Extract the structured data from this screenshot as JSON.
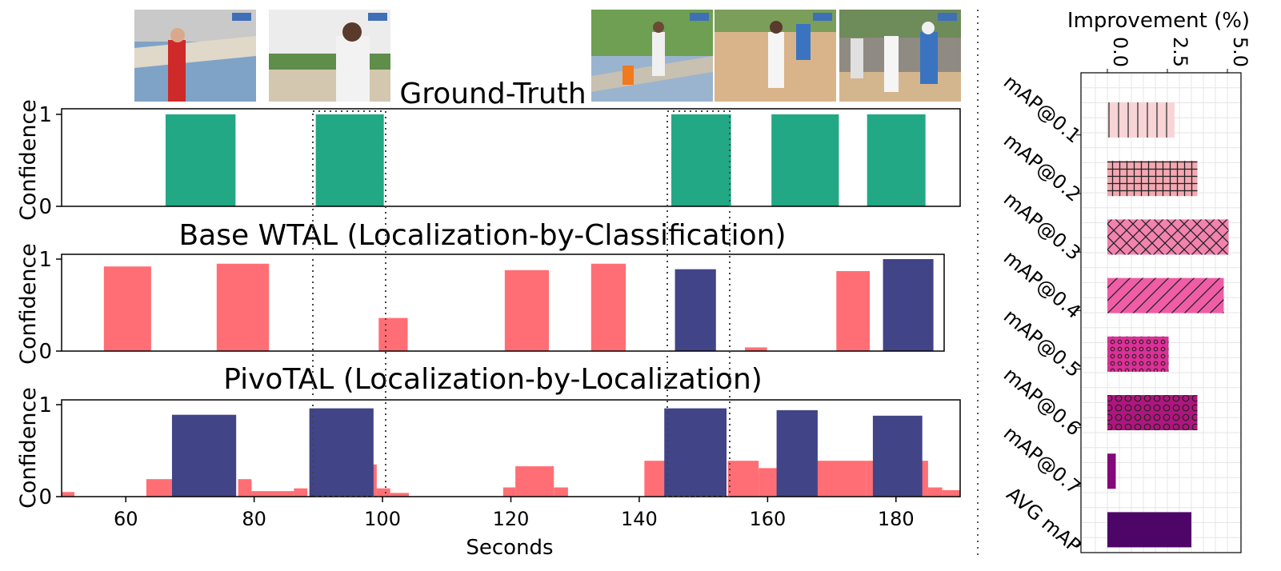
{
  "chart_data": [
    {
      "type": "bar",
      "title": "Ground-Truth",
      "ylabel": "Confidence",
      "xlim": [
        50,
        190
      ],
      "ylim": [
        0,
        1
      ],
      "yticks": [
        0,
        1
      ],
      "series": [
        {
          "color": "#22a884",
          "bars": [
            [
              66.2,
              77.1,
              1.0
            ],
            [
              89.6,
              100.2,
              1.0
            ],
            [
              145.0,
              154.3,
              1.0
            ],
            [
              160.6,
              171.1,
              1.0
            ],
            [
              175.5,
              184.6,
              1.0
            ]
          ]
        }
      ]
    },
    {
      "type": "bar",
      "title": "Base WTAL (Localization-by-Classification)",
      "ylabel": "Confidence",
      "xlim": [
        50,
        190
      ],
      "ylim": [
        0,
        1
      ],
      "yticks": [
        0,
        1
      ],
      "series": [
        {
          "color": "#ff6e74",
          "bars": [
            [
              56.7,
              64.2,
              0.92
            ],
            [
              74.6,
              82.9,
              0.95
            ],
            [
              100.3,
              104.9,
              0.36
            ],
            [
              120.3,
              127.3,
              0.88
            ],
            [
              134.0,
              139.5,
              0.95
            ],
            [
              158.4,
              161.9,
              0.04
            ],
            [
              172.9,
              178.2,
              0.87
            ]
          ]
        },
        {
          "color": "#414487",
          "bars": [
            [
              147.3,
              153.8,
              0.89
            ],
            [
              180.3,
              188.3,
              1.0
            ]
          ]
        }
      ]
    },
    {
      "type": "bar",
      "title": "PivoTAL (Localization-by-Localization)",
      "ylabel": "Confidence",
      "xlabel": "Seconds",
      "xlim": [
        50,
        190
      ],
      "ylim": [
        0,
        1
      ],
      "yticks": [
        0,
        1
      ],
      "xticks": [
        60,
        80,
        100,
        120,
        140,
        160,
        180
      ],
      "series": [
        {
          "color": "#ff6e74",
          "bars": [
            [
              50,
              52,
              0.05
            ],
            [
              63.2,
              67.5,
              0.19
            ],
            [
              77.5,
              79.6,
              0.19
            ],
            [
              79.6,
              86.2,
              0.06
            ],
            [
              86.2,
              88.3,
              0.09
            ],
            [
              98.2,
              99.1,
              0.35
            ],
            [
              99.1,
              101.2,
              0.09
            ],
            [
              101.2,
              104.1,
              0.04
            ],
            [
              118.8,
              120.7,
              0.1
            ],
            [
              120.7,
              126.7,
              0.33
            ],
            [
              126.7,
              128.9,
              0.1
            ],
            [
              140.8,
              144.2,
              0.39
            ],
            [
              153.8,
              158.6,
              0.39
            ],
            [
              158.6,
              161.4,
              0.31
            ],
            [
              161.4,
              167.8,
              0.39
            ],
            [
              167.8,
              175.3,
              0.39
            ],
            [
              175.3,
              182.5,
              0.39
            ],
            [
              182.5,
              185.0,
              0.39
            ],
            [
              185.0,
              187.2,
              0.1
            ],
            [
              187.2,
              190,
              0.07
            ]
          ]
        },
        {
          "color": "#414487",
          "bars": [
            [
              67.2,
              77.2,
              0.89
            ],
            [
              88.6,
              98.6,
              0.96
            ],
            [
              143.9,
              153.6,
              0.96
            ],
            [
              161.4,
              167.8,
              0.94
            ],
            [
              176.4,
              184.1,
              0.88
            ]
          ]
        }
      ]
    },
    {
      "type": "bar",
      "orientation": "horizontal",
      "title": "Improvement (%)",
      "xlim": [
        -0.5,
        5.0
      ],
      "xticks": [
        "0.0",
        "2.5",
        "5.0"
      ],
      "grid": true,
      "categories": [
        "mAP@0.1",
        "mAP@0.2",
        "mAP@0.3",
        "mAP@0.4",
        "mAP@0.5",
        "mAP@0.6",
        "mAP@0.7",
        "AVG mAP"
      ],
      "values": [
        2.8,
        3.75,
        5.05,
        4.85,
        2.55,
        3.75,
        0.35,
        3.5
      ],
      "colors": [
        "#f8d4d6",
        "#f4a8b2",
        "#f283ae",
        "#ef5da6",
        "#db3097",
        "#b0157f",
        "#84087a",
        "#4e0568"
      ],
      "hatches": [
        "vertical-lines",
        "grid",
        "cross-hatch",
        "diagonal-lines",
        "small-circles",
        "large-circles",
        "none",
        "none"
      ]
    }
  ]
}
